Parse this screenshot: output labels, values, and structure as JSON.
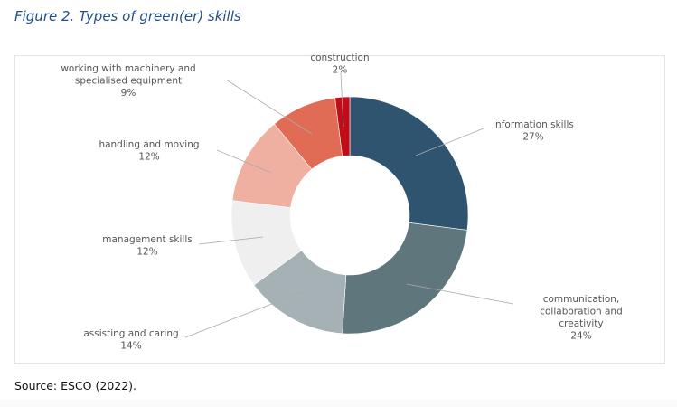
{
  "title": "Figure 2. Types of green(er) skills",
  "source": "Source: ESCO (2022).",
  "chart_data": {
    "type": "pie",
    "subtype": "donut",
    "title": "Figure 2. Types of green(er) skills",
    "categories": [
      "information skills",
      "communication, collaboration and creativity",
      "assisting and caring",
      "management skills",
      "handling and moving",
      "working with machinery and specialised equipment",
      "construction"
    ],
    "values": [
      27,
      24,
      14,
      12,
      12,
      9,
      2
    ],
    "unit": "%",
    "colors": [
      "#2e5470",
      "#5f777c",
      "#a5b1b5",
      "#efefef",
      "#efb0a1",
      "#e06c55",
      "#c00d17"
    ],
    "labels": [
      {
        "lines": [
          "information skills",
          "27%"
        ]
      },
      {
        "lines": [
          "communication,",
          "collaboration and",
          "creativity",
          "24%"
        ]
      },
      {
        "lines": [
          "assisting and caring",
          "14%"
        ]
      },
      {
        "lines": [
          "management  skills",
          "12%"
        ]
      },
      {
        "lines": [
          "handling and moving",
          "12%"
        ]
      },
      {
        "lines": [
          "working with machinery and",
          "specialised equipment",
          "9%"
        ]
      },
      {
        "lines": [
          "construction",
          "2%"
        ]
      }
    ],
    "legend": "none"
  }
}
